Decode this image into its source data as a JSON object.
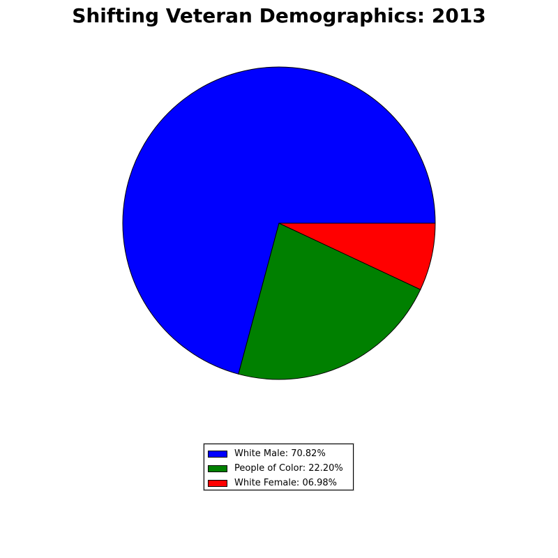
{
  "chart_data": {
    "type": "pie",
    "title": "Shifting Veteran Demographics: 2013",
    "slices": [
      {
        "label": "White Male: 70.82%",
        "value": 70.82,
        "color": "#0000ff"
      },
      {
        "label": "People of Color: 22.20%",
        "value": 22.2,
        "color": "#008000"
      },
      {
        "label": "White Female: 06.98%",
        "value": 6.98,
        "color": "#ff0000"
      }
    ],
    "start_angle_deg": 0,
    "direction": "counterclockwise",
    "legend_position": "lower-center"
  }
}
